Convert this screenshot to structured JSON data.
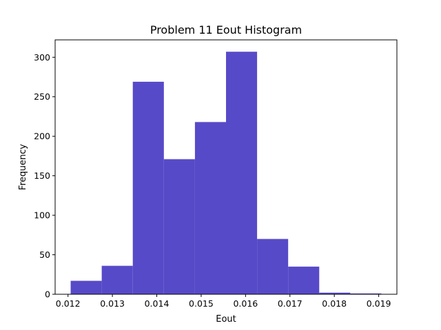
{
  "chart_data": {
    "type": "bar",
    "title": "Problem 11 Eout Histogram",
    "xlabel": "Eout",
    "ylabel": "Frequency",
    "bin_edges": [
      0.01206,
      0.01276,
      0.01346,
      0.01416,
      0.01486,
      0.01556,
      0.01626,
      0.01696,
      0.01766,
      0.01836,
      0.01906
    ],
    "values": [
      17,
      36,
      269,
      171,
      218,
      307,
      70,
      35,
      2,
      1
    ],
    "xlim": [
      0.01171,
      0.01941
    ],
    "ylim": [
      0,
      322
    ],
    "xticks": [
      "0.012",
      "0.013",
      "0.014",
      "0.015",
      "0.016",
      "0.017",
      "0.018",
      "0.019"
    ],
    "yticks": [
      "0",
      "50",
      "100",
      "150",
      "200",
      "250",
      "300"
    ],
    "bar_color": "#574AC8",
    "grid": false,
    "legend": "none"
  }
}
